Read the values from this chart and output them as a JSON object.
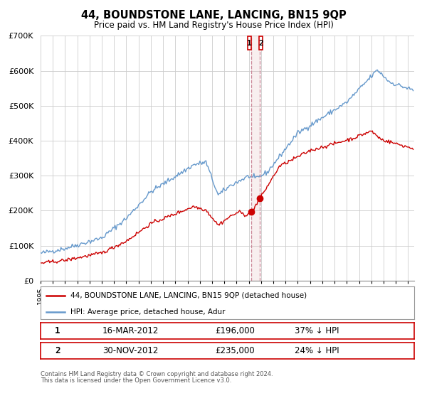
{
  "title": "44, BOUNDSTONE LANE, LANCING, BN15 9QP",
  "subtitle": "Price paid vs. HM Land Registry's House Price Index (HPI)",
  "ylim": [
    0,
    700000
  ],
  "yticks": [
    0,
    100000,
    200000,
    300000,
    400000,
    500000,
    600000,
    700000
  ],
  "ytick_labels": [
    "£0",
    "£100K",
    "£200K",
    "£300K",
    "£400K",
    "£500K",
    "£600K",
    "£700K"
  ],
  "xlim_start": 1995.0,
  "xlim_end": 2025.5,
  "red_line_color": "#cc0000",
  "blue_line_color": "#6699cc",
  "vline_color": "#cc8899",
  "vline_x1": 2012.21,
  "vline_x2": 2012.92,
  "point1_x": 2012.21,
  "point1_y": 196000,
  "point2_x": 2012.92,
  "point2_y": 235000,
  "legend_label_red": "44, BOUNDSTONE LANE, LANCING, BN15 9QP (detached house)",
  "legend_label_blue": "HPI: Average price, detached house, Adur",
  "note1_num": "1",
  "note1_date": "16-MAR-2012",
  "note1_price": "£196,000",
  "note1_hpi": "37% ↓ HPI",
  "note2_num": "2",
  "note2_date": "30-NOV-2012",
  "note2_price": "£235,000",
  "note2_hpi": "24% ↓ HPI",
  "footer1": "Contains HM Land Registry data © Crown copyright and database right 2024.",
  "footer2": "This data is licensed under the Open Government Licence v3.0.",
  "background_color": "#ffffff",
  "grid_color": "#cccccc"
}
